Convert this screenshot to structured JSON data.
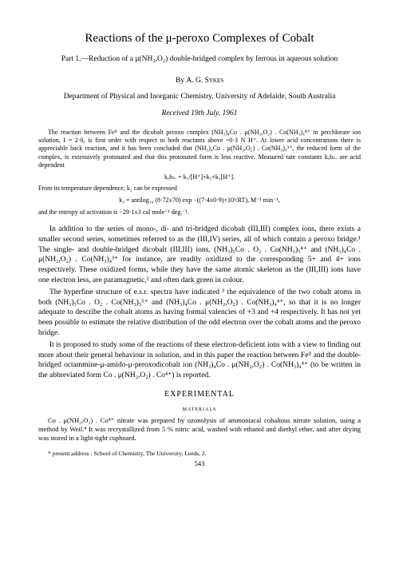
{
  "title": "Reactions of the μ-peroxo Complexes of Cobalt",
  "subtitle": "Part 1.—Reduction of a μ(NH₂,O₂) double-bridged complex by ferrous in aqueous solution",
  "author_by": "By",
  "author_name": "A. G. Sykes",
  "affiliation": "Department of Physical and Inorganic Chemistry, University of Adelaide, South Australia",
  "received": "Received 19th July, 1961",
  "abstract1": "The reaction between Feᴵᴵ and the dicobalt peroxo complex (NH₃)₄Co . μ(NH₂,O₂) . Co(NH₃)₄⁴⁺ in perchlorate ion solution, I = 2·0, is first order with respect to both reactants above ~0·3 N H⁺. At lower acid concentrations there is appreciable back reaction, and it has been concluded that (NH₃)₄Co . μ(NH₂,O₂) . Co(NH₃)₄³⁺, the reduced form of the complex, is extensively protonated and that this protonated form is less reactive. Measured rate constants kₒbₛ. are acid dependent",
  "eq1": "kₒbₛ. = k₁/[H⁺]+k₂+k₃[H⁺].",
  "abstract2": "From its temperature dependence, k₂ can be expressed",
  "eq2": "k₂ = antilog₁₀ (8·72±70) exp −((7·4±0·9)×10³/RT),      M⁻¹ min⁻¹,",
  "abstract3": "and the entropy of activation is −29·1±3 cal mole⁻¹ deg.⁻¹.",
  "body1": "In addition to the series of mono-, di- and tri-bridged dicobalt (III,III) complex ions, there exists a smaller second series, sometimes referred to as the (III,IV) series, all of which contain a peroxo bridge.¹ The single- and double-bridged dicobalt (III,III) ions, (NH₃)₅Co . O₂ . Co(NH₃)₅⁴⁺ and (NH₃)₄Co . μ(NH₂,O₂) . Co(NH₃)₄³⁺ for instance, are readily oxidized to the corresponding 5+ and 4+ ions respectively. These oxidized forms, while they have the same atomic skeleton as the (III,III) ions have one electron less, are paramagnetic,² and often dark green in colour.",
  "body2": "The hyperfine structure of e.s.r. spectra have indicated ³ the equivalence of the two cobalt atoms in both (NH₃)₅Co . O₂ . Co(NH₃)₅⁵⁺ and (NH₃)₄Co . μ(NH₂,O₂) . Co(NH₃)₄⁴⁺, so that it is no longer adequate to describe the cobalt atoms as having formal valencies of +3 and +4 respectively. It has not yet been possible to estimate the relative distribution of the odd electron over the cobalt atoms and the peroxo bridge.",
  "body3": "It is proposed to study some of the reactions of these electron-deficient ions with a view to finding out more about their general behaviour in solution, and in this paper the reaction between Feᴵᴵ and the double-bridged octammine-μ-amido-μ-peroxodicobalt ion (NH₃)₄Co . μ(NH₂,O₂) . Co(NH₃)₄⁴⁺ (to be written in the abbreviated form Co . μ(NH₂,O₂) . Co⁴⁺) is reported.",
  "section": "EXPERIMENTAL",
  "subsection": "materials",
  "materials": "Co . μ(NH₂,O₂) . Co⁴⁺ nitrate was prepared by ozonolysis of ammoniacal cobaltous nitrate solution, using a method by Weil.⁴ It was recrystallized from 5 % nitric acid, washed with ethanol and diethyl ether, and after drying was stored in a light-tight cupboard.",
  "footnote": "* present address : School of Chemistry, The University, Leeds, 2.",
  "page_number": "543"
}
